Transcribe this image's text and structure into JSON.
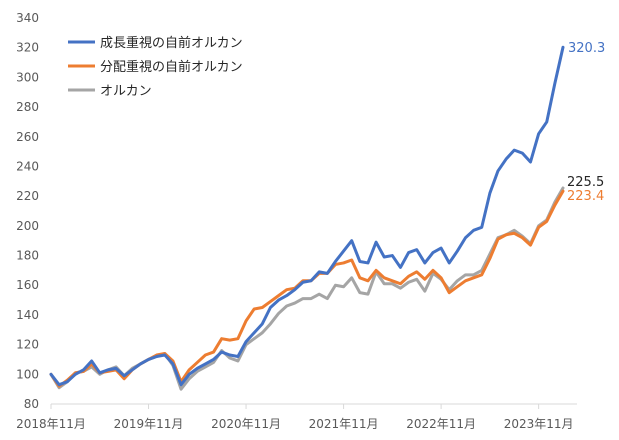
{
  "chart_data": {
    "type": "line",
    "title": "",
    "xlabel": "",
    "ylabel": "",
    "ylim": [
      80,
      340
    ],
    "ytick_step": 20,
    "x_tick_labels": [
      "2018年11月",
      "2019年11月",
      "2020年11月",
      "2021年11月",
      "2022年11月",
      "2023年11月"
    ],
    "legend_position": "top-left",
    "grid": false,
    "series": [
      {
        "name": "成長重視の自前オルカン",
        "color": "#4472C4",
        "end_label": "320.3",
        "values": [
          100,
          93,
          95,
          100,
          103,
          109,
          101,
          103,
          104,
          99,
          103,
          107,
          110,
          112,
          113,
          107,
          93,
          100,
          104,
          107,
          110,
          115,
          113,
          112,
          122,
          128,
          134,
          145,
          150,
          153,
          157,
          162,
          163,
          169,
          168,
          176,
          183,
          190,
          176,
          175,
          189,
          179,
          180,
          172,
          182,
          184,
          175,
          182,
          185,
          175,
          183,
          192,
          197,
          199,
          222,
          237,
          245,
          251,
          249,
          243,
          262,
          270,
          296,
          320.3
        ]
      },
      {
        "name": "分配重視の自前オルカン",
        "color": "#ED7D31",
        "end_label": "223.4",
        "values": [
          100,
          92,
          96,
          101,
          102,
          107,
          101,
          102,
          103,
          97,
          103,
          107,
          110,
          113,
          114,
          109,
          95,
          103,
          108,
          113,
          115,
          124,
          123,
          124,
          136,
          144,
          145,
          149,
          153,
          157,
          158,
          163,
          163,
          168,
          168,
          174,
          175,
          177,
          165,
          163,
          170,
          165,
          163,
          161,
          166,
          169,
          164,
          170,
          165,
          155,
          159,
          163,
          165,
          167,
          178,
          191,
          194,
          195,
          192,
          187,
          199,
          203,
          214,
          223.4
        ]
      },
      {
        "name": "オルカン",
        "color": "#A5A5A5",
        "end_label": "225.5",
        "values": [
          100,
          91,
          95,
          101,
          102,
          105,
          100,
          103,
          105,
          99,
          104,
          107,
          110,
          112,
          114,
          106,
          90,
          97,
          102,
          105,
          108,
          116,
          111,
          109,
          120,
          124,
          128,
          134,
          141,
          146,
          148,
          151,
          151,
          154,
          151,
          160,
          159,
          165,
          155,
          154,
          169,
          161,
          161,
          158,
          162,
          164,
          156,
          168,
          164,
          157,
          163,
          167,
          167,
          170,
          181,
          192,
          194,
          197,
          193,
          188,
          200,
          204,
          216,
          225.5
        ]
      }
    ]
  }
}
